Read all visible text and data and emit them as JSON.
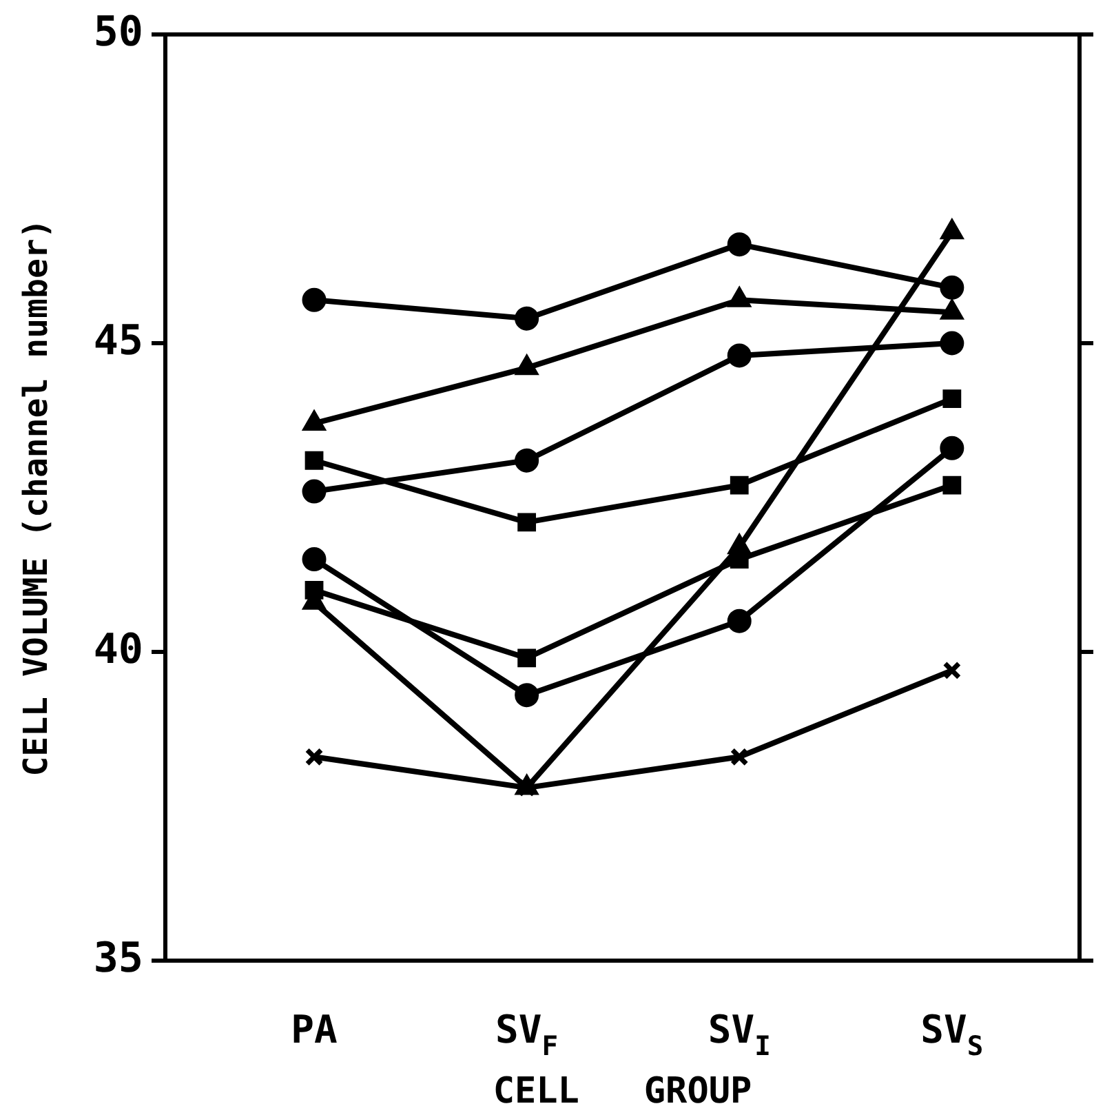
{
  "chart_data": {
    "type": "line",
    "xlabel": "CELL   GROUP",
    "ylabel": "CELL VOLUME (channel number)",
    "categories": [
      "PA",
      "SV$_{F}$",
      "SV$_{I}$",
      "SV$_{S}$"
    ],
    "ylim": [
      35,
      50
    ],
    "yticks": [
      35,
      40,
      45,
      50
    ],
    "grid": false,
    "legend": false,
    "line_style": "solid",
    "series": [
      {
        "color": "#000000",
        "marker": "circle",
        "values": [
          45.7,
          45.4,
          46.6,
          45.9
        ]
      },
      {
        "color": "#000000",
        "marker": "triangle",
        "values": [
          43.7,
          44.6,
          45.7,
          45.5
        ]
      },
      {
        "color": "#000000",
        "marker": "circle",
        "values": [
          42.6,
          43.1,
          44.8,
          45.0
        ]
      },
      {
        "color": "#000000",
        "marker": "square",
        "values": [
          43.1,
          42.1,
          42.7,
          44.1
        ]
      },
      {
        "color": "#000000",
        "marker": "circle",
        "values": [
          41.5,
          39.3,
          40.5,
          43.3
        ]
      },
      {
        "color": "#000000",
        "marker": "square",
        "values": [
          41.0,
          39.9,
          41.5,
          42.7
        ]
      },
      {
        "color": "#000000",
        "marker": "triangle",
        "values": [
          40.8,
          37.8,
          41.7,
          46.8
        ]
      },
      {
        "color": "#000000",
        "marker": "cross",
        "values": [
          38.3,
          37.8,
          38.3,
          39.7
        ]
      }
    ]
  }
}
